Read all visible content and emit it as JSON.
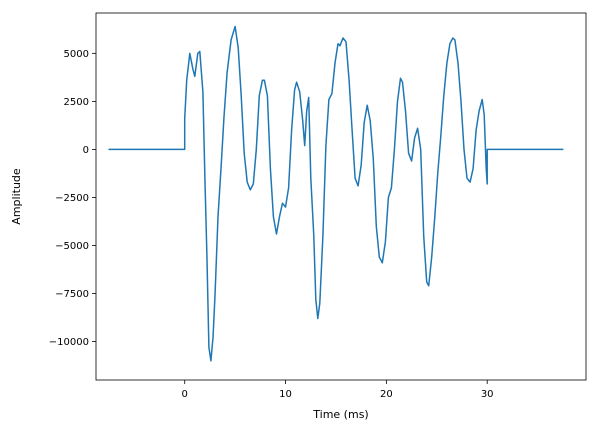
{
  "chart_data": {
    "type": "line",
    "title": "",
    "xlabel": "Time (ms)",
    "ylabel": "Amplitude",
    "xlim": [
      -8.8,
      39.8
    ],
    "ylim": [
      -12000,
      7100
    ],
    "xticks": [
      {
        "value": 0,
        "label": "0"
      },
      {
        "value": 10,
        "label": "10"
      },
      {
        "value": 20,
        "label": "20"
      },
      {
        "value": 30,
        "label": "30"
      }
    ],
    "yticks": [
      {
        "value": -10000,
        "label": "−10000"
      },
      {
        "value": -7500,
        "label": "−7500"
      },
      {
        "value": -5000,
        "label": "−5000"
      },
      {
        "value": -2500,
        "label": "−2500"
      },
      {
        "value": 0,
        "label": "0"
      },
      {
        "value": 2500,
        "label": "2500"
      },
      {
        "value": 5000,
        "label": "5000"
      }
    ],
    "grid": false,
    "legend": "none",
    "series": [
      {
        "color": "#1f77b4",
        "points": [
          [
            -7.5,
            0
          ],
          [
            0,
            0
          ],
          [
            0,
            1600
          ],
          [
            0.2,
            3600
          ],
          [
            0.5,
            5000
          ],
          [
            0.8,
            4200
          ],
          [
            1.0,
            3800
          ],
          [
            1.3,
            5000
          ],
          [
            1.5,
            5100
          ],
          [
            1.8,
            3000
          ],
          [
            2.0,
            -1500
          ],
          [
            2.2,
            -5500
          ],
          [
            2.4,
            -10300
          ],
          [
            2.6,
            -11000
          ],
          [
            2.8,
            -9800
          ],
          [
            3.0,
            -7600
          ],
          [
            3.3,
            -3500
          ],
          [
            3.6,
            -1000
          ],
          [
            3.9,
            1700
          ],
          [
            4.2,
            4000
          ],
          [
            4.6,
            5700
          ],
          [
            5.0,
            6400
          ],
          [
            5.3,
            5300
          ],
          [
            5.6,
            2800
          ],
          [
            5.9,
            -200
          ],
          [
            6.2,
            -1700
          ],
          [
            6.5,
            -2100
          ],
          [
            6.8,
            -1800
          ],
          [
            7.1,
            0
          ],
          [
            7.4,
            2800
          ],
          [
            7.7,
            3600
          ],
          [
            7.9,
            3600
          ],
          [
            8.2,
            2800
          ],
          [
            8.5,
            -1000
          ],
          [
            8.8,
            -3500
          ],
          [
            9.1,
            -4400
          ],
          [
            9.4,
            -3500
          ],
          [
            9.7,
            -2800
          ],
          [
            10.0,
            -3000
          ],
          [
            10.3,
            -2000
          ],
          [
            10.6,
            1000
          ],
          [
            10.9,
            3100
          ],
          [
            11.1,
            3500
          ],
          [
            11.4,
            3000
          ],
          [
            11.7,
            1500
          ],
          [
            11.9,
            200
          ],
          [
            12.1,
            2000
          ],
          [
            12.3,
            2700
          ],
          [
            12.5,
            -1500
          ],
          [
            12.8,
            -4500
          ],
          [
            13.0,
            -7800
          ],
          [
            13.2,
            -8800
          ],
          [
            13.4,
            -8000
          ],
          [
            13.7,
            -4500
          ],
          [
            14.0,
            200
          ],
          [
            14.3,
            2600
          ],
          [
            14.6,
            2900
          ],
          [
            14.9,
            4500
          ],
          [
            15.2,
            5500
          ],
          [
            15.4,
            5400
          ],
          [
            15.7,
            5800
          ],
          [
            16.0,
            5600
          ],
          [
            16.3,
            3600
          ],
          [
            16.6,
            1000
          ],
          [
            16.9,
            -1500
          ],
          [
            17.2,
            -1900
          ],
          [
            17.5,
            -800
          ],
          [
            17.8,
            1400
          ],
          [
            18.1,
            2300
          ],
          [
            18.4,
            1500
          ],
          [
            18.7,
            -500
          ],
          [
            19.0,
            -4000
          ],
          [
            19.3,
            -5600
          ],
          [
            19.6,
            -5900
          ],
          [
            19.9,
            -4800
          ],
          [
            20.2,
            -2500
          ],
          [
            20.5,
            -2000
          ],
          [
            20.8,
            0
          ],
          [
            21.1,
            2500
          ],
          [
            21.4,
            3700
          ],
          [
            21.6,
            3500
          ],
          [
            21.9,
            2000
          ],
          [
            22.2,
            -200
          ],
          [
            22.5,
            -600
          ],
          [
            22.8,
            600
          ],
          [
            23.1,
            1100
          ],
          [
            23.4,
            0
          ],
          [
            23.7,
            -4500
          ],
          [
            24.0,
            -6900
          ],
          [
            24.2,
            -7100
          ],
          [
            24.5,
            -5600
          ],
          [
            24.8,
            -3500
          ],
          [
            25.1,
            -1200
          ],
          [
            25.4,
            700
          ],
          [
            25.7,
            2800
          ],
          [
            26.0,
            4500
          ],
          [
            26.3,
            5500
          ],
          [
            26.6,
            5800
          ],
          [
            26.8,
            5700
          ],
          [
            27.1,
            4500
          ],
          [
            27.4,
            2500
          ],
          [
            27.7,
            0
          ],
          [
            28.0,
            -1500
          ],
          [
            28.3,
            -1700
          ],
          [
            28.6,
            -1000
          ],
          [
            28.9,
            1000
          ],
          [
            29.2,
            2000
          ],
          [
            29.5,
            2600
          ],
          [
            29.7,
            1800
          ],
          [
            29.9,
            -1000
          ],
          [
            30.0,
            -1800
          ],
          [
            30.0,
            0
          ],
          [
            37.5,
            0
          ]
        ]
      }
    ]
  }
}
